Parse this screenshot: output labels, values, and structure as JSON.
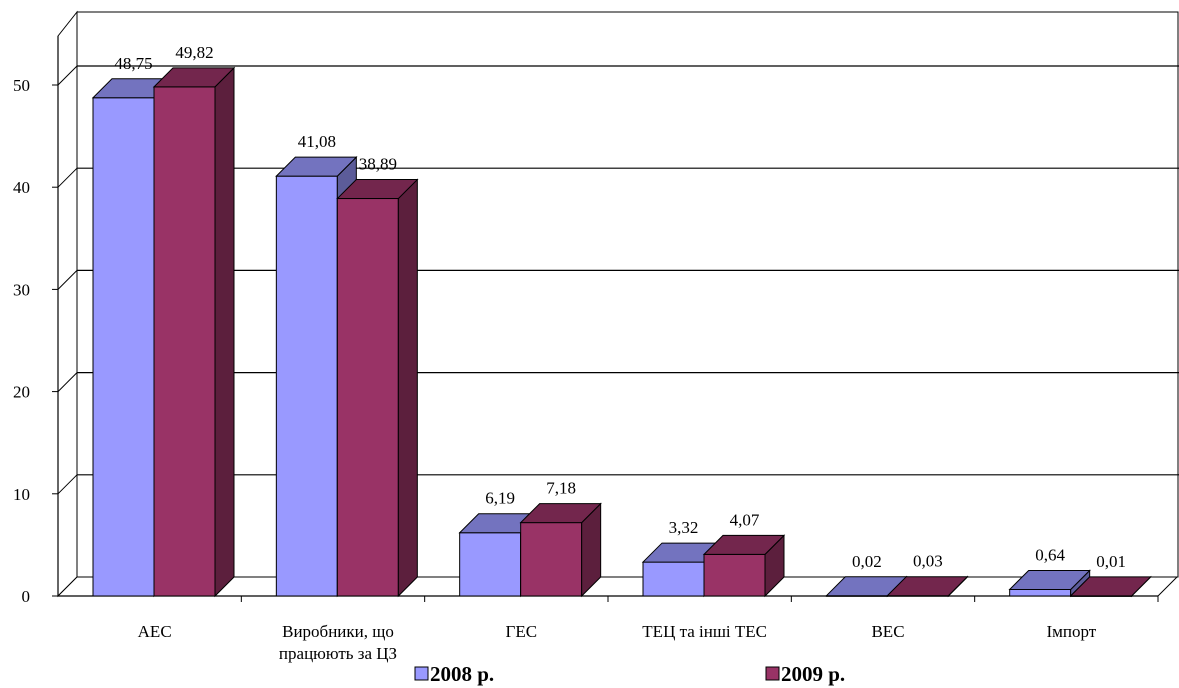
{
  "chart_data": {
    "type": "bar",
    "three_d": true,
    "categories": [
      "АЕС",
      "Виробники, що працюють за ЦЗ",
      "ГЕС",
      "ТЕЦ та інші ТЕС",
      "ВЕС",
      "Імпорт"
    ],
    "category_label_lines": [
      [
        "АЕС"
      ],
      [
        "Виробники, що",
        "працюють за ЦЗ"
      ],
      [
        "ГЕС"
      ],
      [
        "ТЕЦ та інші ТЕС"
      ],
      [
        "ВЕС"
      ],
      [
        "Імпорт"
      ]
    ],
    "series": [
      {
        "name": "2008 р.",
        "values": [
          48.75,
          41.08,
          6.19,
          3.32,
          0.02,
          0.64
        ],
        "labels": [
          "48,75",
          "41,08",
          "6,19",
          "3,32",
          "0,02",
          "0,64"
        ],
        "color": "#9999ff"
      },
      {
        "name": "2009 р.",
        "values": [
          49.82,
          38.89,
          7.18,
          4.07,
          0.03,
          0.01
        ],
        "labels": [
          "49,82",
          "38,89",
          "7,18",
          "4,07",
          "0,03",
          "0,01"
        ],
        "color": "#993366"
      }
    ],
    "ylim": [
      0,
      50
    ],
    "yticks": [
      "0",
      "10",
      "20",
      "30",
      "40",
      "50"
    ],
    "grid": true,
    "legend": "bottom",
    "title": "",
    "xlabel": "",
    "ylabel": ""
  }
}
